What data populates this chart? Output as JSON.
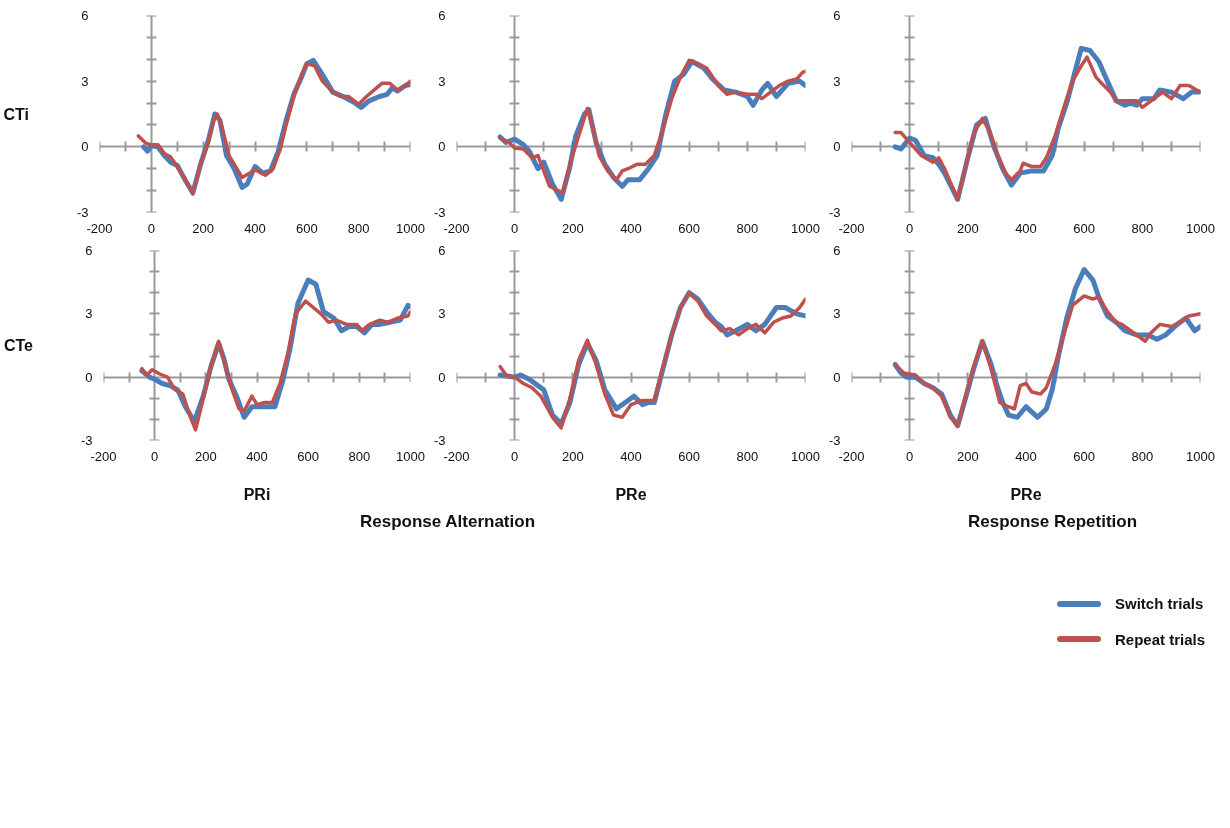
{
  "chart_data": [
    {
      "type": "line",
      "ylabel": "CTi",
      "legend": "bottom right",
      "xlim": [
        -200,
        1000
      ],
      "ylim": [
        -3,
        6
      ],
      "xticks": [
        -200,
        {
          "value": -100,
          "label": null
        },
        0,
        {
          "value": 100,
          "label": null
        },
        200,
        {
          "value": 300,
          "label": null
        },
        400,
        {
          "value": 500,
          "label": null
        },
        600,
        {
          "value": 700,
          "label": null
        },
        800,
        {
          "value": 900,
          "label": null
        },
        1000
      ],
      "yticks": [
        -3,
        {
          "value": -2,
          "label": null
        },
        {
          "value": -1,
          "label": null
        },
        0,
        {
          "value": 1,
          "label": null
        },
        {
          "value": 2,
          "label": null
        },
        3,
        {
          "value": 4,
          "label": null
        },
        {
          "value": 5,
          "label": null
        },
        6
      ],
      "series": [
        {
          "name": "Switch trials",
          "color": "#4a7ebb",
          "x": [
            -30,
            -15,
            0,
            25,
            50,
            75,
            100,
            130,
            160,
            190,
            220,
            245,
            265,
            290,
            320,
            350,
            370,
            400,
            430,
            460,
            490,
            520,
            550,
            580,
            600,
            625,
            660,
            700,
            740,
            780,
            810,
            840,
            880,
            910,
            930,
            950,
            980,
            1000
          ],
          "values": [
            0.0,
            -0.2,
            0.05,
            0.0,
            -0.4,
            -0.7,
            -0.85,
            -1.5,
            -2.1,
            -0.8,
            0.3,
            1.5,
            1.2,
            -0.4,
            -1.0,
            -1.85,
            -1.7,
            -0.9,
            -1.2,
            -1.1,
            -0.2,
            1.2,
            2.4,
            3.2,
            3.8,
            3.95,
            3.3,
            2.5,
            2.3,
            2.05,
            1.8,
            2.1,
            2.3,
            2.4,
            2.7,
            2.55,
            2.8,
            2.85
          ]
        },
        {
          "name": "Repeat trials",
          "color": "#c0504d",
          "x": [
            -50,
            -20,
            0,
            25,
            50,
            75,
            100,
            130,
            160,
            190,
            220,
            240,
            255,
            275,
            300,
            330,
            350,
            380,
            400,
            440,
            470,
            500,
            520,
            550,
            580,
            600,
            630,
            660,
            700,
            730,
            760,
            800,
            830,
            860,
            890,
            920,
            950,
            980,
            1000
          ],
          "values": [
            0.5,
            0.15,
            0.1,
            0.1,
            -0.3,
            -0.47,
            -0.9,
            -1.5,
            -2.15,
            -0.8,
            0.2,
            1.2,
            1.5,
            0.8,
            -0.4,
            -1.0,
            -1.4,
            -1.2,
            -1.05,
            -1.3,
            -1.0,
            0.0,
            1.0,
            2.3,
            3.3,
            3.8,
            3.7,
            3.0,
            2.5,
            2.3,
            2.3,
            1.95,
            2.3,
            2.6,
            2.9,
            2.9,
            2.6,
            2.8,
            3.0
          ]
        }
      ]
    },
    {
      "type": "line",
      "xlim": [
        -200,
        1000
      ],
      "ylim": [
        -3,
        6
      ],
      "xticks": [
        -200,
        {
          "value": -100,
          "label": null
        },
        0,
        {
          "value": 100,
          "label": null
        },
        200,
        {
          "value": 300,
          "label": null
        },
        400,
        {
          "value": 500,
          "label": null
        },
        600,
        {
          "value": 700,
          "label": null
        },
        800,
        {
          "value": 900,
          "label": null
        },
        1000
      ],
      "yticks": [
        -3,
        {
          "value": -2,
          "label": null
        },
        {
          "value": -1,
          "label": null
        },
        0,
        {
          "value": 1,
          "label": null
        },
        {
          "value": 2,
          "label": null
        },
        3,
        {
          "value": 4,
          "label": null
        },
        {
          "value": 5,
          "label": null
        },
        6
      ],
      "series": [
        {
          "color": "#4a7ebb",
          "x": [
            -50,
            -30,
            0,
            30,
            50,
            80,
            100,
            130,
            160,
            190,
            210,
            240,
            255,
            280,
            310,
            340,
            370,
            390,
            430,
            460,
            490,
            520,
            550,
            580,
            610,
            650,
            680,
            720,
            760,
            800,
            820,
            850,
            870,
            900,
            940,
            980,
            1000
          ],
          "values": [
            0.45,
            0.2,
            0.35,
            0.1,
            -0.2,
            -1.0,
            -0.7,
            -1.7,
            -2.4,
            -0.9,
            0.5,
            1.5,
            1.7,
            0.2,
            -0.8,
            -1.4,
            -1.8,
            -1.5,
            -1.5,
            -1.0,
            -0.4,
            1.5,
            3.0,
            3.3,
            3.9,
            3.6,
            3.1,
            2.6,
            2.5,
            2.3,
            1.9,
            2.6,
            2.9,
            2.3,
            2.9,
            3.0,
            2.8
          ]
        },
        {
          "color": "#c0504d",
          "x": [
            -50,
            -20,
            0,
            30,
            60,
            80,
            120,
            165,
            190,
            220,
            250,
            270,
            290,
            320,
            350,
            370,
            390,
            420,
            450,
            480,
            510,
            540,
            570,
            600,
            630,
            660,
            700,
            730,
            760,
            800,
            830,
            850,
            880,
            910,
            940,
            970,
            990,
            1000
          ],
          "values": [
            0.4,
            0.2,
            -0.05,
            -0.1,
            -0.5,
            -0.4,
            -1.8,
            -2.1,
            -0.8,
            0.5,
            1.75,
            0.8,
            -0.4,
            -1.1,
            -1.5,
            -1.1,
            -1.0,
            -0.8,
            -0.8,
            -0.4,
            0.8,
            2.2,
            3.2,
            3.95,
            3.8,
            3.6,
            2.8,
            2.4,
            2.5,
            2.4,
            2.4,
            2.2,
            2.5,
            2.8,
            3.0,
            3.1,
            3.4,
            3.45
          ]
        }
      ]
    },
    {
      "type": "line",
      "xlim": [
        -200,
        1000
      ],
      "ylim": [
        -3,
        6
      ],
      "xticks": [
        -200,
        {
          "value": -100,
          "label": null
        },
        0,
        {
          "value": 100,
          "label": null
        },
        200,
        {
          "value": 300,
          "label": null
        },
        400,
        {
          "value": 500,
          "label": null
        },
        600,
        {
          "value": 700,
          "label": null
        },
        800,
        {
          "value": 900,
          "label": null
        },
        1000
      ],
      "yticks": [
        -3,
        {
          "value": -2,
          "label": null
        },
        {
          "value": -1,
          "label": null
        },
        0,
        {
          "value": 1,
          "label": null
        },
        {
          "value": 2,
          "label": null
        },
        3,
        {
          "value": 4,
          "label": null
        },
        {
          "value": 5,
          "label": null
        },
        6
      ],
      "series": [
        {
          "color": "#4a7ebb",
          "x": [
            -50,
            -30,
            0,
            20,
            50,
            80,
            100,
            120,
            165,
            200,
            230,
            260,
            290,
            320,
            350,
            380,
            420,
            460,
            490,
            510,
            540,
            570,
            590,
            620,
            650,
            680,
            710,
            740,
            760,
            780,
            800,
            840,
            860,
            900,
            940,
            970,
            1000
          ],
          "values": [
            0.0,
            -0.1,
            0.4,
            0.3,
            -0.4,
            -0.5,
            -0.8,
            -1.2,
            -2.4,
            -0.5,
            1.0,
            1.3,
            0.0,
            -1.0,
            -1.75,
            -1.2,
            -1.1,
            -1.1,
            -0.4,
            0.8,
            2.0,
            3.5,
            4.5,
            4.4,
            3.9,
            3.0,
            2.1,
            1.9,
            2.0,
            1.9,
            2.2,
            2.2,
            2.6,
            2.5,
            2.2,
            2.5,
            2.5
          ]
        },
        {
          "color": "#c0504d",
          "x": [
            -50,
            -30,
            0,
            40,
            80,
            100,
            120,
            165,
            190,
            220,
            250,
            275,
            300,
            330,
            350,
            380,
            390,
            420,
            450,
            470,
            500,
            530,
            560,
            590,
            610,
            640,
            660,
            690,
            710,
            750,
            780,
            800,
            830,
            870,
            900,
            930,
            960,
            1000
          ],
          "values": [
            0.65,
            0.65,
            0.2,
            -0.4,
            -0.7,
            -0.5,
            -1.0,
            -2.4,
            -1.0,
            0.6,
            1.3,
            0.7,
            -0.3,
            -1.2,
            -1.5,
            -1.1,
            -0.75,
            -0.9,
            -0.9,
            -0.5,
            0.5,
            1.8,
            3.0,
            3.7,
            4.1,
            3.2,
            2.9,
            2.5,
            2.1,
            2.1,
            2.1,
            1.8,
            2.1,
            2.5,
            2.2,
            2.8,
            2.8,
            2.5
          ]
        }
      ]
    },
    {
      "type": "line",
      "ylabel": "CTe",
      "xlabel": "PRi",
      "annotations": [
        "Response Alternation"
      ],
      "xlim": [
        -200,
        1000
      ],
      "ylim": [
        -3,
        6
      ],
      "xticks": [
        -200,
        {
          "value": -100,
          "label": null
        },
        0,
        {
          "value": 100,
          "label": null
        },
        200,
        {
          "value": 300,
          "label": null
        },
        400,
        {
          "value": 500,
          "label": null
        },
        600,
        {
          "value": 700,
          "label": null
        },
        800,
        {
          "value": 900,
          "label": null
        },
        1000
      ],
      "yticks": [
        -3,
        {
          "value": -2,
          "label": null
        },
        {
          "value": -1,
          "label": null
        },
        0,
        {
          "value": 1,
          "label": null
        },
        {
          "value": 2,
          "label": null
        },
        3,
        {
          "value": 4,
          "label": null
        },
        {
          "value": 5,
          "label": null
        },
        6
      ],
      "series": [
        {
          "color": "#4a7ebb",
          "x": [
            -50,
            -20,
            0,
            30,
            60,
            90,
            120,
            155,
            190,
            220,
            250,
            270,
            290,
            320,
            350,
            380,
            420,
            450,
            470,
            500,
            530,
            560,
            600,
            630,
            660,
            700,
            730,
            760,
            790,
            820,
            850,
            880,
            920,
            960,
            990,
            1000
          ],
          "values": [
            0.3,
            0.0,
            -0.1,
            -0.3,
            -0.4,
            -0.6,
            -1.4,
            -2.1,
            -0.9,
            0.5,
            1.6,
            0.9,
            -0.1,
            -0.9,
            -1.9,
            -1.4,
            -1.4,
            -1.4,
            -1.4,
            -0.2,
            1.4,
            3.5,
            4.6,
            4.4,
            3.1,
            2.8,
            2.2,
            2.4,
            2.4,
            2.1,
            2.5,
            2.5,
            2.6,
            2.7,
            3.4,
            3.35
          ]
        },
        {
          "color": "#c0504d",
          "x": [
            -50,
            -30,
            -10,
            20,
            50,
            80,
            110,
            140,
            160,
            190,
            220,
            250,
            270,
            300,
            330,
            350,
            380,
            400,
            430,
            460,
            490,
            520,
            550,
            590,
            620,
            650,
            680,
            710,
            750,
            790,
            810,
            840,
            880,
            910,
            950,
            990,
            1000
          ],
          "values": [
            0.4,
            0.1,
            0.35,
            0.15,
            0.0,
            -0.6,
            -0.8,
            -1.9,
            -2.5,
            -1.0,
            0.5,
            1.7,
            0.8,
            -0.5,
            -1.5,
            -1.6,
            -0.9,
            -1.3,
            -1.2,
            -1.2,
            -0.3,
            1.1,
            3.0,
            3.6,
            3.3,
            3.0,
            2.6,
            2.7,
            2.5,
            2.5,
            2.2,
            2.5,
            2.7,
            2.6,
            2.8,
            2.9,
            3.1
          ]
        }
      ]
    },
    {
      "type": "line",
      "xlabel": "PRe",
      "xlim": [
        -200,
        1000
      ],
      "ylim": [
        -3,
        6
      ],
      "xticks": [
        -200,
        {
          "value": -100,
          "label": null
        },
        0,
        {
          "value": 100,
          "label": null
        },
        200,
        {
          "value": 300,
          "label": null
        },
        400,
        {
          "value": 500,
          "label": null
        },
        600,
        {
          "value": 700,
          "label": null
        },
        800,
        {
          "value": 900,
          "label": null
        },
        1000
      ],
      "yticks": [
        -3,
        {
          "value": -2,
          "label": null
        },
        {
          "value": -1,
          "label": null
        },
        0,
        {
          "value": 1,
          "label": null
        },
        {
          "value": 2,
          "label": null
        },
        3,
        {
          "value": 4,
          "label": null
        },
        {
          "value": 5,
          "label": null
        },
        6
      ],
      "series": [
        {
          "color": "#4a7ebb",
          "x": [
            -50,
            0,
            20,
            50,
            80,
            100,
            130,
            160,
            190,
            220,
            250,
            280,
            310,
            350,
            380,
            410,
            440,
            460,
            480,
            510,
            540,
            570,
            600,
            630,
            660,
            690,
            710,
            730,
            760,
            800,
            830,
            860,
            900,
            930,
            970,
            1000
          ],
          "values": [
            0.1,
            0.0,
            0.1,
            -0.1,
            -0.4,
            -0.6,
            -1.8,
            -2.2,
            -1.2,
            0.6,
            1.6,
            0.8,
            -0.6,
            -1.5,
            -1.2,
            -0.9,
            -1.3,
            -1.2,
            -1.2,
            0.4,
            2.0,
            3.3,
            4.0,
            3.7,
            3.1,
            2.6,
            2.4,
            2.0,
            2.2,
            2.5,
            2.2,
            2.5,
            3.3,
            3.3,
            3.0,
            2.9
          ]
        },
        {
          "color": "#c0504d",
          "x": [
            -50,
            -30,
            0,
            30,
            60,
            90,
            130,
            160,
            190,
            220,
            250,
            280,
            310,
            340,
            370,
            400,
            440,
            480,
            510,
            540,
            570,
            600,
            630,
            660,
            690,
            710,
            740,
            770,
            800,
            830,
            860,
            890,
            920,
            950,
            980,
            1000
          ],
          "values": [
            0.5,
            0.1,
            0.0,
            -0.3,
            -0.5,
            -0.9,
            -1.9,
            -2.4,
            -1.0,
            0.8,
            1.75,
            0.6,
            -0.8,
            -1.8,
            -1.9,
            -1.3,
            -1.1,
            -1.1,
            0.5,
            2.0,
            3.3,
            4.0,
            3.6,
            2.9,
            2.5,
            2.2,
            2.3,
            2.0,
            2.3,
            2.5,
            2.1,
            2.6,
            2.8,
            2.9,
            3.3,
            3.7
          ]
        }
      ]
    },
    {
      "type": "line",
      "xlabel": "PRe",
      "annotations": [
        "Response Repetition"
      ],
      "xlim": [
        -200,
        1000
      ],
      "ylim": [
        -3,
        6
      ],
      "xticks": [
        -200,
        {
          "value": -100,
          "label": null
        },
        0,
        {
          "value": 100,
          "label": null
        },
        200,
        {
          "value": 300,
          "label": null
        },
        400,
        {
          "value": 500,
          "label": null
        },
        600,
        {
          "value": 700,
          "label": null
        },
        800,
        {
          "value": 900,
          "label": null
        },
        1000
      ],
      "yticks": [
        -3,
        {
          "value": -2,
          "label": null
        },
        {
          "value": -1,
          "label": null
        },
        0,
        {
          "value": 1,
          "label": null
        },
        {
          "value": 2,
          "label": null
        },
        3,
        {
          "value": 4,
          "label": null
        },
        {
          "value": 5,
          "label": null
        },
        6
      ],
      "series": [
        {
          "color": "#4a7ebb",
          "x": [
            -50,
            -30,
            -10,
            20,
            50,
            80,
            110,
            140,
            165,
            190,
            220,
            250,
            280,
            300,
            320,
            340,
            370,
            400,
            440,
            470,
            490,
            510,
            540,
            570,
            600,
            630,
            650,
            680,
            710,
            740,
            780,
            820,
            850,
            880,
            920,
            950,
            980,
            1000
          ],
          "values": [
            0.6,
            0.2,
            0.0,
            0.0,
            -0.3,
            -0.5,
            -0.8,
            -1.8,
            -2.3,
            -1.1,
            0.4,
            1.7,
            0.6,
            -0.4,
            -1.2,
            -1.8,
            -1.9,
            -1.4,
            -1.9,
            -1.5,
            -0.6,
            0.9,
            2.8,
            4.2,
            5.1,
            4.6,
            3.8,
            2.9,
            2.6,
            2.2,
            2.0,
            2.0,
            1.8,
            2.0,
            2.5,
            2.8,
            2.2,
            2.4
          ]
        },
        {
          "color": "#c0504d",
          "x": [
            -50,
            -20,
            20,
            50,
            80,
            110,
            140,
            165,
            190,
            220,
            250,
            280,
            310,
            340,
            360,
            380,
            400,
            420,
            450,
            470,
            500,
            530,
            560,
            600,
            630,
            650,
            680,
            710,
            730,
            760,
            790,
            810,
            830,
            860,
            900,
            930,
            960,
            1000
          ],
          "values": [
            0.6,
            0.2,
            0.1,
            -0.3,
            -0.5,
            -0.9,
            -1.9,
            -2.3,
            -1.0,
            0.5,
            1.7,
            0.4,
            -1.2,
            -1.4,
            -1.5,
            -0.4,
            -0.3,
            -0.7,
            -0.8,
            -0.5,
            0.6,
            2.0,
            3.4,
            3.85,
            3.7,
            3.8,
            3.1,
            2.6,
            2.5,
            2.2,
            1.9,
            1.7,
            2.1,
            2.5,
            2.4,
            2.6,
            2.9,
            3.0
          ]
        }
      ]
    }
  ]
}
